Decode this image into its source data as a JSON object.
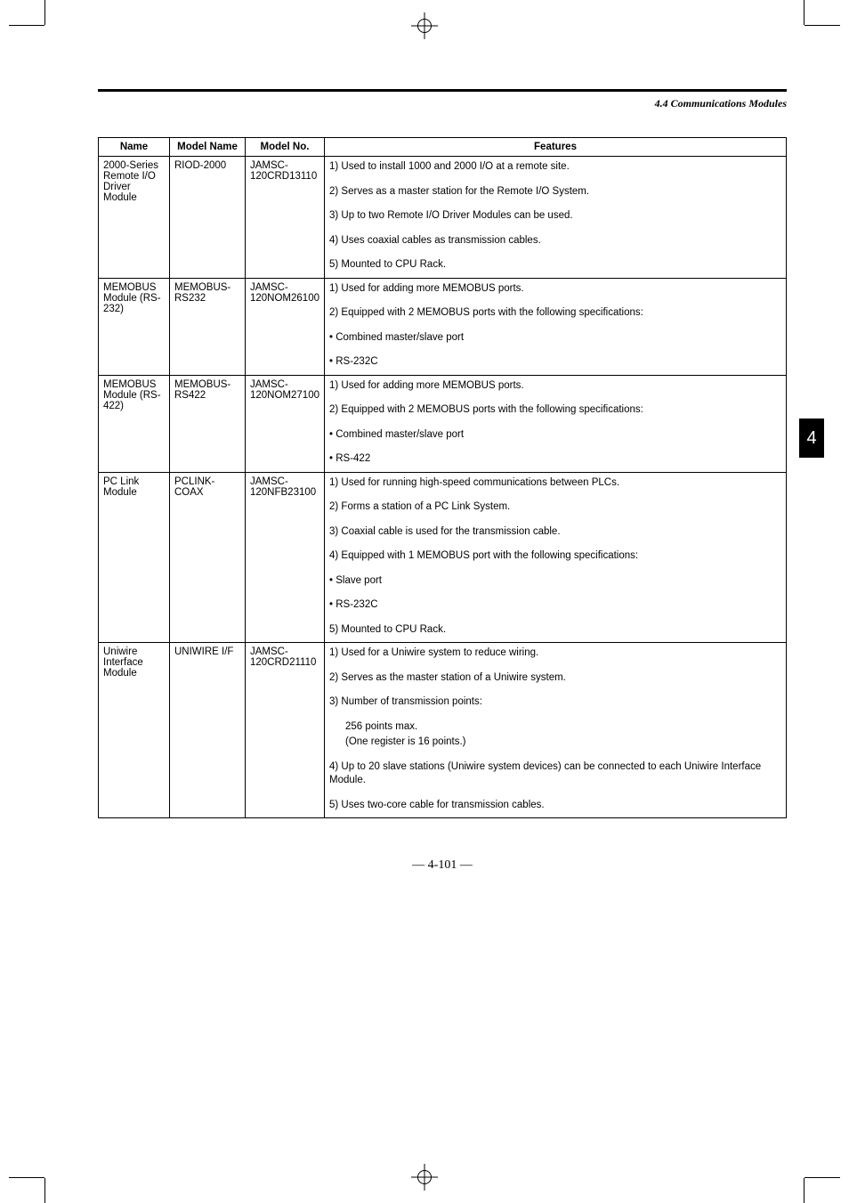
{
  "header": {
    "section": "4.4 Communications Modules"
  },
  "side_tab": "4",
  "page_number": "— 4-101 —",
  "table": {
    "columns": [
      "Name",
      "Model Name",
      "Model No.",
      "Features"
    ],
    "rows": [
      {
        "name": "2000-Series Remote I/O Driver Module",
        "model_name": "RIOD-2000",
        "model_no": "JAMSC-120CRD13110",
        "features": [
          "1)  Used to install 1000 and 2000 I/O at a remote site.",
          "2)  Serves as a master station for the Remote I/O System.",
          "3)  Up to two Remote I/O Driver Modules can be used.",
          "4)  Uses coaxial cables as transmission cables.",
          "5)  Mounted to CPU Rack."
        ]
      },
      {
        "name": "MEMOBUS Module (RS-232)",
        "model_name": "MEMOBUS-RS232",
        "model_no": "JAMSC-120NOM26100",
        "features": [
          "1)  Used for adding more MEMOBUS ports.",
          "2)  Equipped with 2 MEMOBUS ports with the following specifications:",
          "• Combined master/slave port",
          "• RS-232C"
        ]
      },
      {
        "name": "MEMOBUS Module (RS-422)",
        "model_name": "MEMOBUS-RS422",
        "model_no": "JAMSC-120NOM27100",
        "features": [
          "1)  Used for adding more MEMOBUS ports.",
          "2)  Equipped with 2 MEMOBUS ports with the following specifications:",
          "• Combined master/slave port",
          "• RS-422"
        ]
      },
      {
        "name": "PC Link Module",
        "model_name": "PCLINK-COAX",
        "model_no": "JAMSC-120NFB23100",
        "features": [
          "1)  Used for running high-speed communications between PLCs.",
          "2)  Forms a station of a PC Link System.",
          "3)  Coaxial cable is used for the transmission cable.",
          "4)  Equipped with 1 MEMOBUS port with the following specifications:",
          "• Slave port",
          "• RS-232C",
          "5)  Mounted to CPU Rack."
        ]
      },
      {
        "name": "Uniwire Interface Module",
        "model_name": "UNIWIRE I/F",
        "model_no": "JAMSC-120CRD21110",
        "features": [
          "1)  Used for a Uniwire system to reduce wiring.",
          "2)  Serves as the master station of a Uniwire system.",
          "3)  Number of transmission points:",
          "__INDENT__256 points max.",
          "__INDENT__(One register is 16 points.)",
          "4)  Up to 20 slave stations (Uniwire system devices) can be connected to each Uniwire Interface Module.",
          "5)  Uses two-core cable for transmission cables."
        ]
      }
    ]
  }
}
